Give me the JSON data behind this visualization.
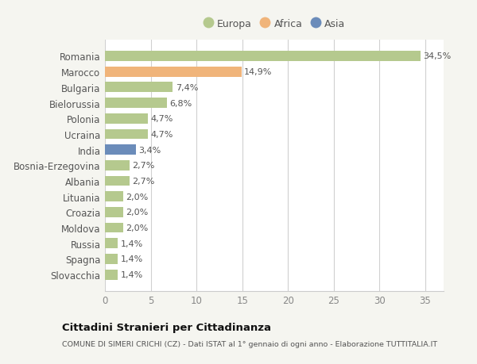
{
  "categories": [
    "Romania",
    "Marocco",
    "Bulgaria",
    "Bielorussia",
    "Polonia",
    "Ucraina",
    "India",
    "Bosnia-Erzegovina",
    "Albania",
    "Lituania",
    "Croazia",
    "Moldova",
    "Russia",
    "Spagna",
    "Slovacchia"
  ],
  "values": [
    34.5,
    14.9,
    7.4,
    6.8,
    4.7,
    4.7,
    3.4,
    2.7,
    2.7,
    2.0,
    2.0,
    2.0,
    1.4,
    1.4,
    1.4
  ],
  "labels": [
    "34,5%",
    "14,9%",
    "7,4%",
    "6,8%",
    "4,7%",
    "4,7%",
    "3,4%",
    "2,7%",
    "2,7%",
    "2,0%",
    "2,0%",
    "2,0%",
    "1,4%",
    "1,4%",
    "1,4%"
  ],
  "colors": [
    "#b5c98e",
    "#f0b47a",
    "#b5c98e",
    "#b5c98e",
    "#b5c98e",
    "#b5c98e",
    "#6b8cba",
    "#b5c98e",
    "#b5c98e",
    "#b5c98e",
    "#b5c98e",
    "#b5c98e",
    "#b5c98e",
    "#b5c98e",
    "#b5c98e"
  ],
  "legend": [
    {
      "label": "Europa",
      "color": "#b5c98e"
    },
    {
      "label": "Africa",
      "color": "#f0b47a"
    },
    {
      "label": "Asia",
      "color": "#6b8cba"
    }
  ],
  "xlim": [
    0,
    37
  ],
  "xticks": [
    0,
    5,
    10,
    15,
    20,
    25,
    30,
    35
  ],
  "title": "Cittadini Stranieri per Cittadinanza",
  "subtitle": "COMUNE DI SIMERI CRICHI (CZ) - Dati ISTAT al 1° gennaio di ogni anno - Elaborazione TUTTITALIA.IT",
  "background_color": "#f5f5f0",
  "plot_bg_color": "#ffffff",
  "grid_color": "#d0d0d0",
  "bar_height": 0.65
}
